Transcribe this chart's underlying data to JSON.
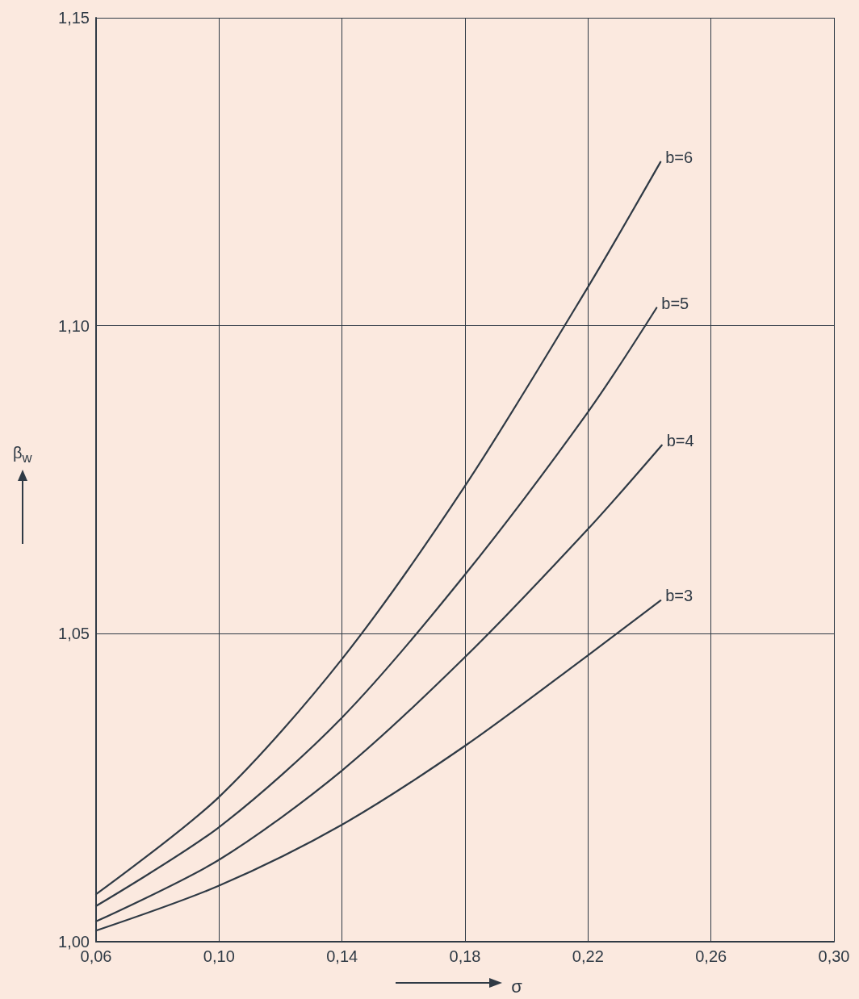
{
  "chart_data": {
    "type": "line",
    "xlabel": "σ",
    "ylabel": "β$_{w}$",
    "xlim": [
      0.06,
      0.3
    ],
    "ylim": [
      1.0,
      1.15
    ],
    "xticks": [
      {
        "value": 0.06,
        "label": "0,06"
      },
      {
        "value": 0.1,
        "label": "0,10"
      },
      {
        "value": 0.14,
        "label": "0,14"
      },
      {
        "value": 0.18,
        "label": "0,18"
      },
      {
        "value": 0.22,
        "label": "0,22"
      },
      {
        "value": 0.26,
        "label": "0,26"
      },
      {
        "value": 0.3,
        "label": "0,30"
      }
    ],
    "yticks": [
      {
        "value": 1.0,
        "label": "1,00"
      },
      {
        "value": 1.05,
        "label": "1,05"
      },
      {
        "value": 1.1,
        "label": "1,10"
      },
      {
        "value": 1.15,
        "label": "1,15"
      }
    ],
    "grid": true,
    "legend": false,
    "marker": "none",
    "line_style": "solid",
    "series": [
      {
        "name": "b=6",
        "color": "#2f3a45",
        "x": [
          0.06,
          0.1,
          0.14,
          0.18,
          0.22,
          0.2436
        ],
        "values": [
          1.0077,
          1.0235,
          1.0459,
          1.074,
          1.1063,
          1.1266
        ]
      },
      {
        "name": "b=5",
        "color": "#2f3a45",
        "x": [
          0.06,
          0.1,
          0.14,
          0.18,
          0.22,
          0.2423
        ],
        "values": [
          1.0058,
          1.0186,
          1.0364,
          1.0596,
          1.086,
          1.1029
        ]
      },
      {
        "name": "b=4",
        "color": "#2f3a45",
        "x": [
          0.06,
          0.1,
          0.14,
          0.18,
          0.22,
          0.244
        ],
        "values": [
          1.0033,
          1.0133,
          1.0278,
          1.0462,
          1.067,
          1.0806
        ]
      },
      {
        "name": "b=3",
        "color": "#2f3a45",
        "x": [
          0.06,
          0.1,
          0.14,
          0.18,
          0.22,
          0.2436
        ],
        "values": [
          1.0018,
          1.0091,
          1.019,
          1.0318,
          1.0465,
          1.0554
        ]
      }
    ]
  }
}
